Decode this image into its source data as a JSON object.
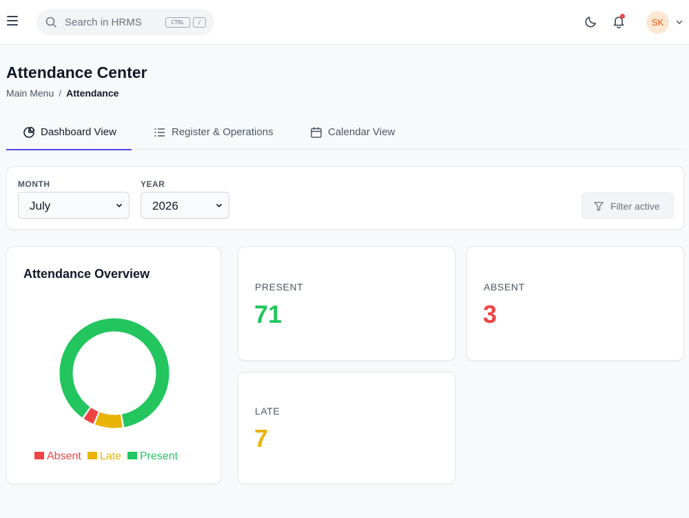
{
  "topbar": {
    "search_placeholder": "Search in HRMS",
    "shortcut_ctrl": "CTRL",
    "shortcut_key": "/",
    "avatar_initials": "SK",
    "icons": [
      "menu-icon",
      "search-icon",
      "moon-icon",
      "bell-icon",
      "chevron-down-icon"
    ]
  },
  "header": {
    "title": "Attendance Center",
    "breadcrumb": [
      "Main Menu",
      "Attendance"
    ],
    "breadcrumb_separator": "/"
  },
  "tabs": [
    {
      "label": "Dashboard View",
      "icon": "pie-chart-icon",
      "active": true
    },
    {
      "label": "Register & Operations",
      "icon": "list-icon",
      "active": false
    },
    {
      "label": "Calendar View",
      "icon": "calendar-icon",
      "active": false
    }
  ],
  "filters": {
    "month_label": "MONTH",
    "month_value": "July",
    "year_label": "YEAR",
    "year_value": "2026",
    "filter_button": "Filter active"
  },
  "overview": {
    "title": "Attendance Overview"
  },
  "stats": {
    "present": {
      "label": "PRESENT",
      "value": "71"
    },
    "absent": {
      "label": "ABSENT",
      "value": "3"
    },
    "late": {
      "label": "LATE",
      "value": "7"
    }
  },
  "colors": {
    "accent": "#4f46e5",
    "present": "#22c55e",
    "absent": "#ef4444",
    "late": "#eab308"
  },
  "chart_data": {
    "type": "pie",
    "title": "Attendance Overview",
    "categories": [
      "Absent",
      "Late",
      "Present"
    ],
    "values": [
      3,
      7,
      71
    ],
    "colors": [
      "#ef4444",
      "#eab308",
      "#22c55e"
    ],
    "legend": "bottom"
  }
}
